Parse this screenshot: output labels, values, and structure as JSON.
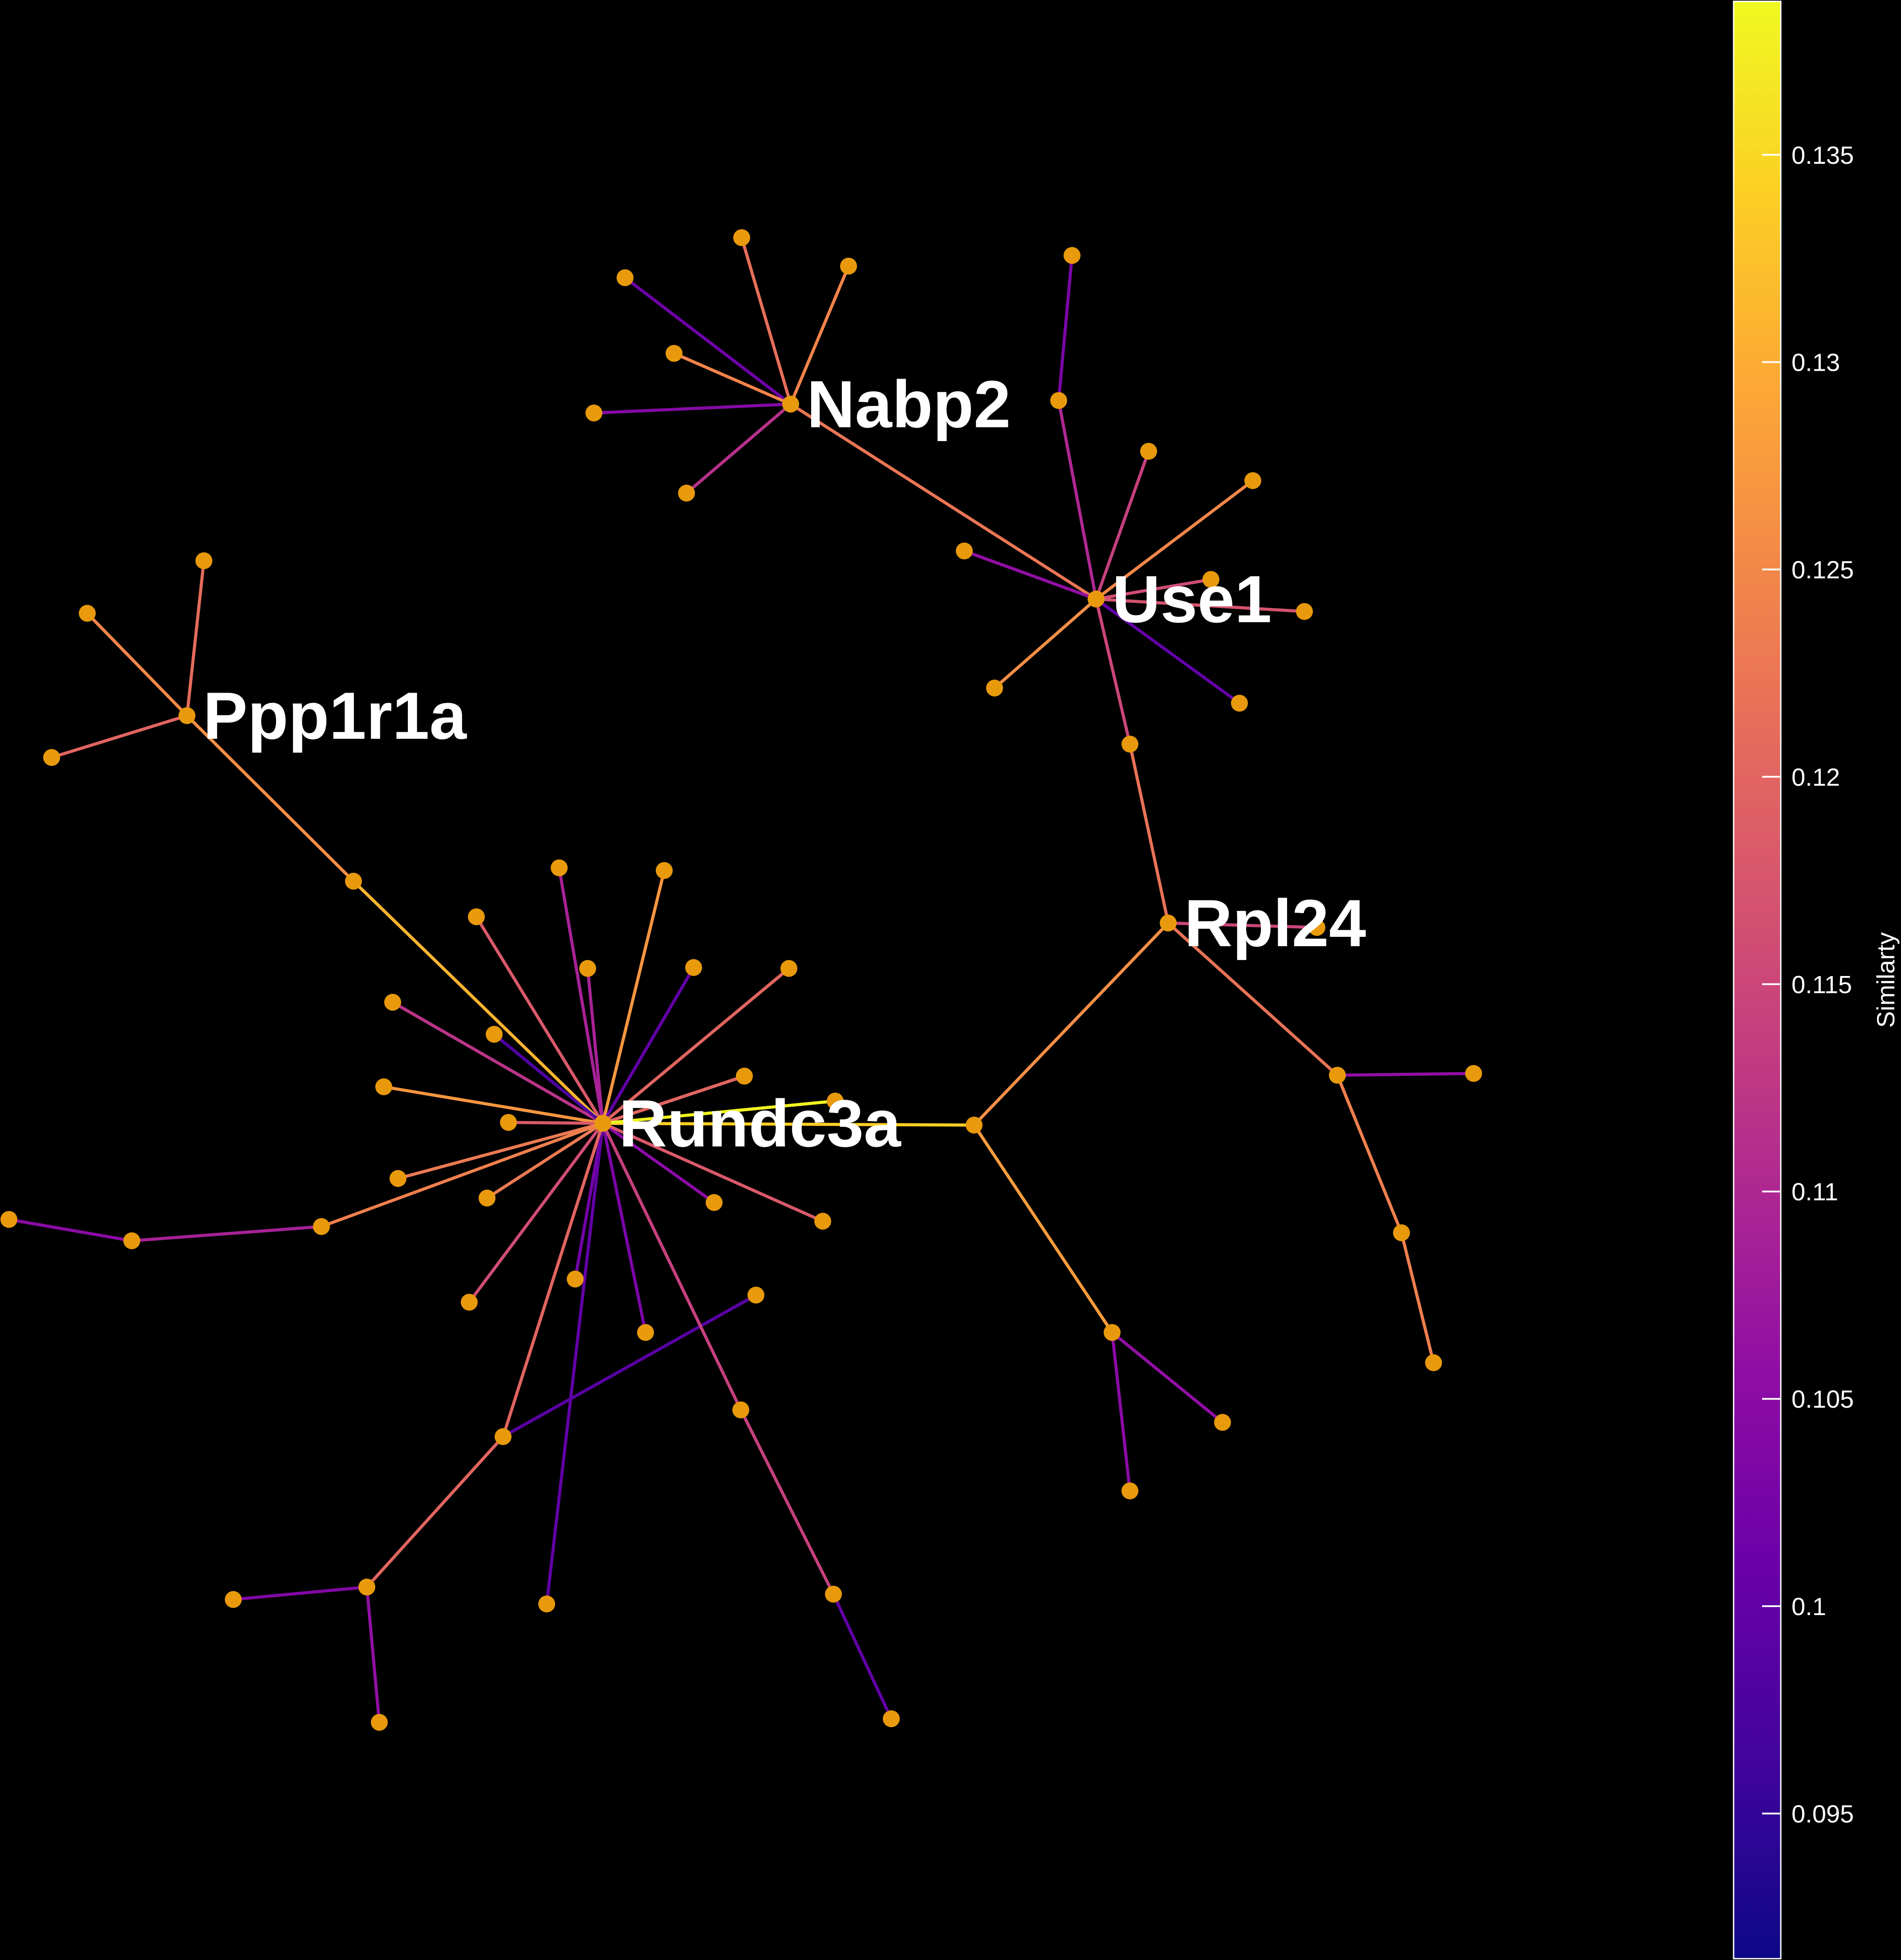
{
  "colorbar": {
    "title": "Similarty",
    "min": 0.0915,
    "max": 0.1387,
    "ticks": [
      "0.095",
      "0.1",
      "0.105",
      "0.11",
      "0.115",
      "0.12",
      "0.125",
      "0.13",
      "0.135"
    ],
    "colormap": "plasma"
  },
  "network": {
    "node_color": "#E89A0C",
    "hubs": [
      {
        "id": "nabp2",
        "label": "Nabp2"
      },
      {
        "id": "use1",
        "label": "Use1"
      },
      {
        "id": "ppp1r1a",
        "label": "Ppp1r1a"
      },
      {
        "id": "rpl24",
        "label": "Rpl24"
      },
      {
        "id": "rundc3a",
        "label": "Rundc3a"
      }
    ],
    "edges": [
      {
        "from": "nabp2",
        "to": "n1",
        "similarity": 0.1215
      },
      {
        "from": "nabp2",
        "to": "n2",
        "similarity": 0.1245
      },
      {
        "from": "nabp2",
        "to": "n3",
        "similarity": 0.1015
      },
      {
        "from": "nabp2",
        "to": "n4",
        "similarity": 0.1245
      },
      {
        "from": "nabp2",
        "to": "n5",
        "similarity": 0.1045
      },
      {
        "from": "nabp2",
        "to": "n6",
        "similarity": 0.1115
      },
      {
        "from": "nabp2",
        "to": "use1",
        "similarity": 0.1225
      },
      {
        "from": "use1",
        "to": "n7",
        "similarity": 0.11
      },
      {
        "from": "n7",
        "to": "n8",
        "similarity": 0.103
      },
      {
        "from": "use1",
        "to": "n9",
        "similarity": 0.114
      },
      {
        "from": "use1",
        "to": "n10",
        "similarity": 0.125
      },
      {
        "from": "use1",
        "to": "n11",
        "similarity": 0.106
      },
      {
        "from": "use1",
        "to": "n12",
        "similarity": 0.116
      },
      {
        "from": "use1",
        "to": "n13",
        "similarity": 0.117
      },
      {
        "from": "use1",
        "to": "n14",
        "similarity": 0.126
      },
      {
        "from": "use1",
        "to": "n15",
        "similarity": 0.1
      },
      {
        "from": "use1",
        "to": "n16",
        "similarity": 0.115
      },
      {
        "from": "n16",
        "to": "rpl24",
        "similarity": 0.122
      },
      {
        "from": "rpl24",
        "to": "n17",
        "similarity": 0.115
      },
      {
        "from": "rpl24",
        "to": "n18",
        "similarity": 0.122
      },
      {
        "from": "n18",
        "to": "n19",
        "similarity": 0.106
      },
      {
        "from": "n18",
        "to": "n20",
        "similarity": 0.124
      },
      {
        "from": "n20",
        "to": "n21",
        "similarity": 0.124
      },
      {
        "from": "rpl24",
        "to": "n22",
        "similarity": 0.126
      },
      {
        "from": "n22",
        "to": "rundc3a",
        "similarity": 0.134
      },
      {
        "from": "n22",
        "to": "n23",
        "similarity": 0.128
      },
      {
        "from": "n23",
        "to": "n24",
        "similarity": 0.106
      },
      {
        "from": "n23",
        "to": "n25",
        "similarity": 0.105
      },
      {
        "from": "ppp1r1a",
        "to": "n26",
        "similarity": 0.125
      },
      {
        "from": "ppp1r1a",
        "to": "n27",
        "similarity": 0.121
      },
      {
        "from": "ppp1r1a",
        "to": "n28",
        "similarity": 0.12
      },
      {
        "from": "ppp1r1a",
        "to": "n29",
        "similarity": 0.126
      },
      {
        "from": "n29",
        "to": "rundc3a",
        "similarity": 0.131
      },
      {
        "from": "rundc3a",
        "to": "n30",
        "similarity": 0.109
      },
      {
        "from": "rundc3a",
        "to": "n31",
        "similarity": 0.127
      },
      {
        "from": "rundc3a",
        "to": "n32",
        "similarity": 0.118
      },
      {
        "from": "rundc3a",
        "to": "n33",
        "similarity": 0.109
      },
      {
        "from": "rundc3a",
        "to": "n34",
        "similarity": 0.1
      },
      {
        "from": "rundc3a",
        "to": "n35",
        "similarity": 0.12
      },
      {
        "from": "rundc3a",
        "to": "n36",
        "similarity": 0.112
      },
      {
        "from": "rundc3a",
        "to": "n37",
        "similarity": 0.098
      },
      {
        "from": "rundc3a",
        "to": "n38",
        "similarity": 0.122
      },
      {
        "from": "rundc3a",
        "to": "n39",
        "similarity": 0.127
      },
      {
        "from": "rundc3a",
        "to": "n40",
        "similarity": 0.12
      },
      {
        "from": "rundc3a",
        "to": "n41",
        "similarity": 0.118
      },
      {
        "from": "rundc3a",
        "to": "n42",
        "similarity": 0.138
      },
      {
        "from": "rundc3a",
        "to": "n43",
        "similarity": 0.123
      },
      {
        "from": "rundc3a",
        "to": "n44",
        "similarity": 0.105
      },
      {
        "from": "rundc3a",
        "to": "n45",
        "similarity": 0.123
      },
      {
        "from": "rundc3a",
        "to": "n46",
        "similarity": 0.118
      },
      {
        "from": "rundc3a",
        "to": "n47",
        "similarity": 0.102
      },
      {
        "from": "rundc3a",
        "to": "n48",
        "similarity": 0.103
      },
      {
        "from": "rundc3a",
        "to": "n49",
        "similarity": 0.1
      },
      {
        "from": "rundc3a",
        "to": "n50",
        "similarity": 0.116
      },
      {
        "from": "rundc3a",
        "to": "n51",
        "similarity": 0.124
      },
      {
        "from": "n51",
        "to": "n52",
        "similarity": 0.109
      },
      {
        "from": "n52",
        "to": "n53",
        "similarity": 0.105
      },
      {
        "from": "rundc3a",
        "to": "n54",
        "similarity": 0.12
      },
      {
        "from": "n54",
        "to": "n55",
        "similarity": 0.12
      },
      {
        "from": "n55",
        "to": "n56",
        "similarity": 0.104
      },
      {
        "from": "n55",
        "to": "n57",
        "similarity": 0.106
      },
      {
        "from": "n54",
        "to": "n58",
        "similarity": 0.099
      },
      {
        "from": "rundc3a",
        "to": "n59",
        "similarity": 0.114
      },
      {
        "from": "n59",
        "to": "n60",
        "similarity": 0.114
      },
      {
        "from": "n60",
        "to": "n61",
        "similarity": 0.1
      }
    ]
  }
}
